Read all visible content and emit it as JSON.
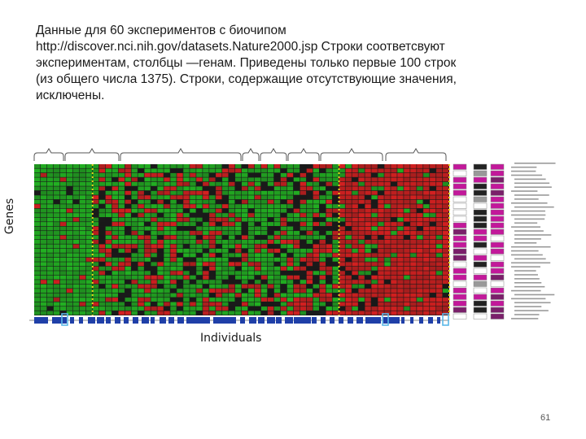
{
  "caption": {
    "line1": "Данные для 60 экспериментов с биочипом",
    "line2_link": "http://discover.nci.nih.gov/datasets.Nature2000.jsp",
    "line2_rest": " Строки соответсвуют",
    "line3": "экспериментам, столбцы —генам. Приведены только первые 100 строк",
    "line4": "(из общего числа 1375). Строки, содержащие отсутствующие значения,",
    "line5": "исключены."
  },
  "axis": {
    "y_label": "Genes",
    "x_label": "Individuals"
  },
  "page_number": "61",
  "colors": {
    "up": "#d42020",
    "down": "#22b022",
    "neutral": "#1a1a1a",
    "bracket": "#555555",
    "individual_bar": "#1f3fa8",
    "magenta": "#c2189a",
    "highlight": "#5ab8e8"
  },
  "icons": [
    "curly-bracket-icon",
    "highlight-box-icon"
  ]
}
